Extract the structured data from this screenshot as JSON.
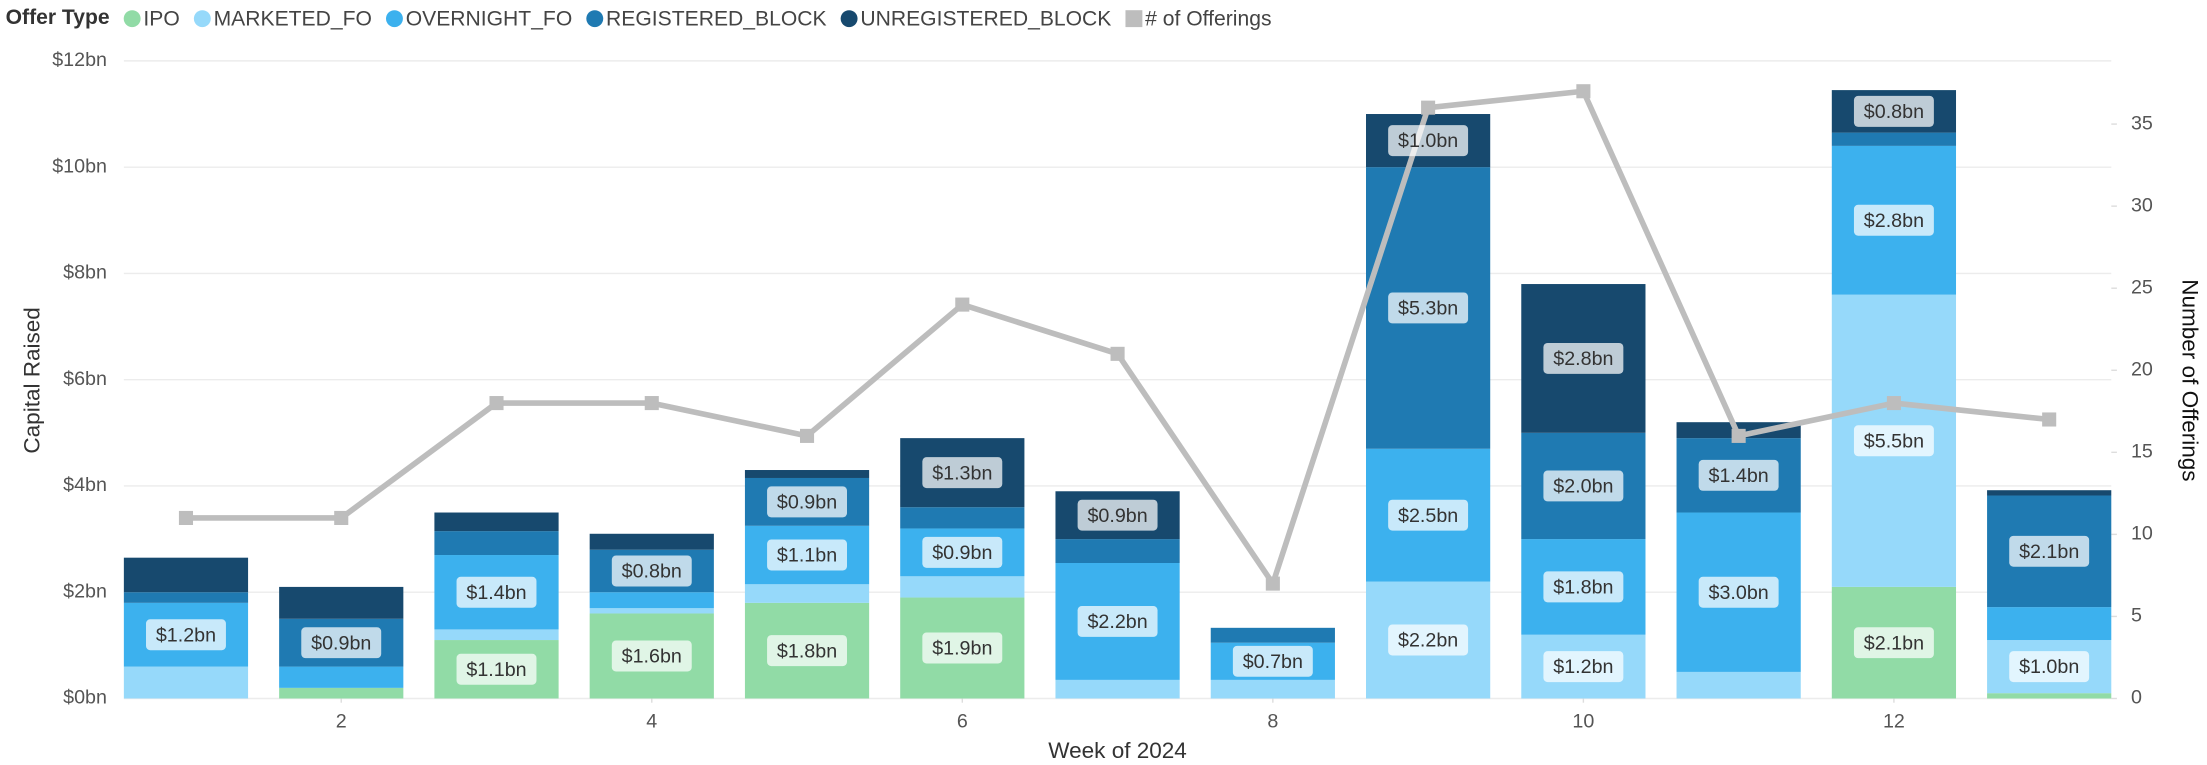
{
  "chart_data": {
    "type": "bar",
    "stacked": true,
    "legend_title": "Offer Type",
    "legend_position": "top-left",
    "xlabel": "Week of 2024",
    "ylabel": "Capital Raised",
    "y2label": "Number of Offerings",
    "x": [
      1,
      2,
      3,
      4,
      5,
      6,
      7,
      8,
      9,
      10,
      11,
      12,
      13
    ],
    "xlim": [
      0.6,
      13.4
    ],
    "xticks": [
      2,
      4,
      6,
      8,
      10,
      12
    ],
    "ylim": [
      0,
      12
    ],
    "yticks": [
      {
        "value": 0,
        "label": "$0bn"
      },
      {
        "value": 2,
        "label": "$2bn"
      },
      {
        "value": 4,
        "label": "$4bn"
      },
      {
        "value": 6,
        "label": "$6bn"
      },
      {
        "value": 8,
        "label": "$8bn"
      },
      {
        "value": 10,
        "label": "$10bn"
      },
      {
        "value": 12,
        "label": "$12bn"
      }
    ],
    "y2lim": [
      0,
      38.85
    ],
    "y2ticks": [
      0,
      5,
      10,
      15,
      20,
      25,
      30,
      35
    ],
    "grid": true,
    "series": [
      {
        "name": "IPO",
        "color": "#91dba6",
        "values": [
          0,
          0.2,
          1.1,
          1.6,
          1.8,
          1.9,
          0,
          0,
          0,
          0,
          0,
          2.1,
          0.1
        ],
        "value_labels": [
          null,
          null,
          "$1.1bn",
          "$1.6bn",
          "$1.8bn",
          "$1.9bn",
          null,
          null,
          null,
          null,
          null,
          "$2.1bn",
          null
        ]
      },
      {
        "name": "MARKETED_FO",
        "color": "#96d9fa",
        "values": [
          0.6,
          0,
          0.2,
          0.1,
          0.35,
          0.4,
          0.35,
          0.35,
          2.2,
          1.2,
          0.5,
          5.5,
          1.0
        ],
        "value_labels": [
          null,
          null,
          null,
          null,
          null,
          null,
          null,
          null,
          "$2.2bn",
          "$1.2bn",
          null,
          "$5.5bn",
          "$1.0bn"
        ]
      },
      {
        "name": "OVERNIGHT_FO",
        "color": "#3cb1ee",
        "values": [
          1.2,
          0.4,
          1.4,
          0.3,
          1.1,
          0.9,
          2.2,
          0.7,
          2.5,
          1.8,
          3.0,
          2.8,
          0.62
        ],
        "value_labels": [
          "$1.2bn",
          null,
          "$1.4bn",
          null,
          "$1.1bn",
          "$0.9bn",
          "$2.2bn",
          "$0.7bn",
          "$2.5bn",
          "$1.8bn",
          "$3.0bn",
          "$2.8bn",
          null
        ]
      },
      {
        "name": "REGISTERED_BLOCK",
        "color": "#1f7ab2",
        "values": [
          0.2,
          0.9,
          0.45,
          0.8,
          0.9,
          0.4,
          0.45,
          0.28,
          5.3,
          2.0,
          1.4,
          0.25,
          2.1
        ],
        "value_labels": [
          null,
          "$0.9bn",
          null,
          "$0.8bn",
          "$0.9bn",
          null,
          null,
          null,
          "$5.3bn",
          "$2.0bn",
          "$1.4bn",
          null,
          "$2.1bn"
        ]
      },
      {
        "name": "UNREGISTERED_BLOCK",
        "color": "#17496e",
        "values": [
          0.65,
          0.6,
          0.35,
          0.3,
          0.15,
          1.3,
          0.9,
          0,
          1.0,
          2.8,
          0.3,
          0.8,
          0.1
        ],
        "value_labels": [
          null,
          null,
          null,
          null,
          null,
          "$1.3bn",
          "$0.9bn",
          null,
          "$1.0bn",
          "$2.8bn",
          null,
          "$0.8bn",
          null
        ]
      },
      {
        "name": "# of Offerings",
        "color": "#bdbdbd",
        "type": "line",
        "axis": "y2",
        "values": [
          11,
          11,
          18,
          18,
          16,
          24,
          21,
          7,
          36,
          37,
          16,
          18,
          17
        ]
      }
    ]
  }
}
